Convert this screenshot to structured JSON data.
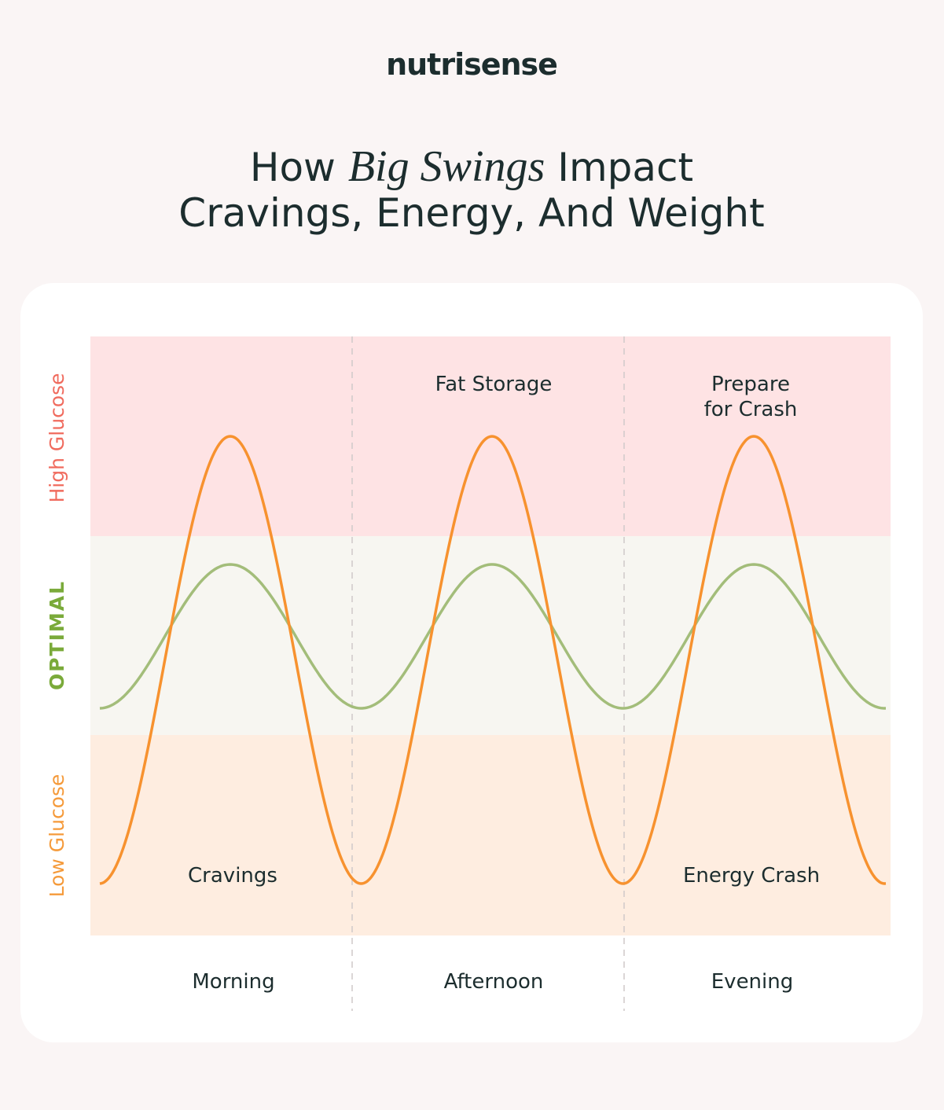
{
  "brand": "nutrisense",
  "title": {
    "before": "How",
    "italic": "Big Swings",
    "after": "Impact",
    "line2": "Cravings, Energy, And Weight"
  },
  "zones": [
    "High Glucose",
    "OPTIMAL",
    "Low Glucose"
  ],
  "annotations": {
    "fat_storage": "Fat Storage",
    "prepare_for_crash": [
      "Prepare",
      "for Crash"
    ],
    "cravings": "Cravings",
    "energy_crash": "Energy Crash"
  },
  "periods": [
    "Morning",
    "Afternoon",
    "Evening"
  ]
}
